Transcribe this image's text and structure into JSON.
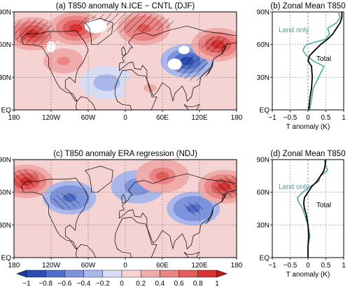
{
  "colors": {
    "land_only": "#3aa39a",
    "total": "#000000",
    "neg_palette": [
      "#2b4db3",
      "#4f6fcc",
      "#7d93dc",
      "#a9b7ea",
      "#d6dcf4"
    ],
    "pos_palette": [
      "#f6d3d3",
      "#f0abab",
      "#ea8585",
      "#e35c5c",
      "#d83232"
    ]
  },
  "chart_data": [
    {
      "type": "heatmap",
      "title": "(a) T850 anomaly N.ICE − CNTL (DJF)",
      "x_ticks": [
        "180",
        "120W",
        "60W",
        "0",
        "60E",
        "120E",
        "180"
      ],
      "y_ticks": [
        "EQ",
        "30N",
        "60N",
        "90N"
      ],
      "xlim": [
        -180,
        180
      ],
      "ylim": [
        0,
        90
      ],
      "anomaly_regions": [
        {
          "lon": -150,
          "lat": 70,
          "value": 0.8
        },
        {
          "lon": -80,
          "lat": 75,
          "value": 0.9
        },
        {
          "lon": 30,
          "lat": 75,
          "value": 0.7
        },
        {
          "lon": 100,
          "lat": 45,
          "value": -0.9
        },
        {
          "lon": 150,
          "lat": 60,
          "value": 0.8
        },
        {
          "lon": -100,
          "lat": 45,
          "value": 0.4
        },
        {
          "lon": -30,
          "lat": 25,
          "value": -0.3
        },
        {
          "lon": 40,
          "lat": 20,
          "value": 0.2
        }
      ]
    },
    {
      "type": "line",
      "title": "(b) Zonal Mean T850",
      "xlabel": "T anomaly (K)",
      "x_ticks": [
        "−1",
        "−0.5",
        "0",
        "0.5",
        "1"
      ],
      "y_ticks": [
        "EQ",
        "30N",
        "60N",
        "90N"
      ],
      "xlim": [
        -1,
        1
      ],
      "ylim": [
        0,
        90
      ],
      "series": [
        {
          "name": "Land only",
          "lat": [
            0,
            10,
            20,
            30,
            40,
            45,
            50,
            55,
            60,
            65,
            70,
            75,
            80,
            85,
            90
          ],
          "values": [
            0.05,
            0.1,
            0.15,
            0.3,
            0.45,
            0.15,
            -0.05,
            -0.15,
            -0.05,
            0.5,
            0.6,
            0.55,
            0.8,
            0.9,
            0.85
          ]
        },
        {
          "name": "Total",
          "lat": [
            0,
            10,
            20,
            30,
            40,
            45,
            50,
            55,
            60,
            65,
            70,
            75,
            80,
            85,
            90
          ],
          "values": [
            0.02,
            0.05,
            0.1,
            0.12,
            0.1,
            0.0,
            0.05,
            0.2,
            0.35,
            0.55,
            0.7,
            0.8,
            0.9,
            0.95,
            0.95
          ]
        }
      ]
    },
    {
      "type": "heatmap",
      "title": "(c) T850 anomaly ERA regression (NDJ)",
      "x_ticks": [
        "180",
        "120W",
        "60W",
        "0",
        "60E",
        "120E",
        "180"
      ],
      "y_ticks": [
        "EQ",
        "30N",
        "60N",
        "90N"
      ],
      "xlim": [
        -180,
        180
      ],
      "ylim": [
        0,
        90
      ],
      "anomaly_regions": [
        {
          "lon": -160,
          "lat": 70,
          "value": 0.9
        },
        {
          "lon": -90,
          "lat": 55,
          "value": -0.7
        },
        {
          "lon": 20,
          "lat": 65,
          "value": -0.6
        },
        {
          "lon": 60,
          "lat": 75,
          "value": 0.6
        },
        {
          "lon": 110,
          "lat": 45,
          "value": -0.7
        },
        {
          "lon": 160,
          "lat": 65,
          "value": 0.9
        }
      ]
    },
    {
      "type": "line",
      "title": "(d) Zonal Mean T850",
      "xlabel": "T anomaly (K)",
      "x_ticks": [
        "−1",
        "−0.5",
        "0",
        "0.5",
        "1"
      ],
      "y_ticks": [
        "EQ",
        "30N",
        "60N",
        "90N"
      ],
      "xlim": [
        -1,
        1
      ],
      "ylim": [
        0,
        90
      ],
      "series": [
        {
          "name": "Land only",
          "lat": [
            0,
            10,
            20,
            30,
            40,
            45,
            50,
            55,
            60,
            65,
            70,
            75,
            80,
            85,
            90
          ],
          "values": [
            0.0,
            0.0,
            0.05,
            0.0,
            -0.1,
            -0.15,
            -0.25,
            -0.3,
            -0.15,
            0.05,
            0.3,
            0.35,
            0.55,
            0.5,
            0.45
          ]
        },
        {
          "name": "Total",
          "lat": [
            0,
            10,
            20,
            30,
            40,
            45,
            50,
            55,
            60,
            65,
            70,
            75,
            80,
            85,
            90
          ],
          "values": [
            0.0,
            0.0,
            0.02,
            0.0,
            -0.05,
            -0.1,
            -0.12,
            -0.1,
            0.0,
            0.1,
            0.25,
            0.35,
            0.45,
            0.48,
            0.5
          ]
        }
      ]
    }
  ],
  "colorbar": {
    "tick_labels": [
      "−1",
      "−0.8",
      "−0.6",
      "−0.4",
      "−0.2",
      "0",
      "0.2",
      "0.4",
      "0.6",
      "0.8",
      "1"
    ]
  }
}
